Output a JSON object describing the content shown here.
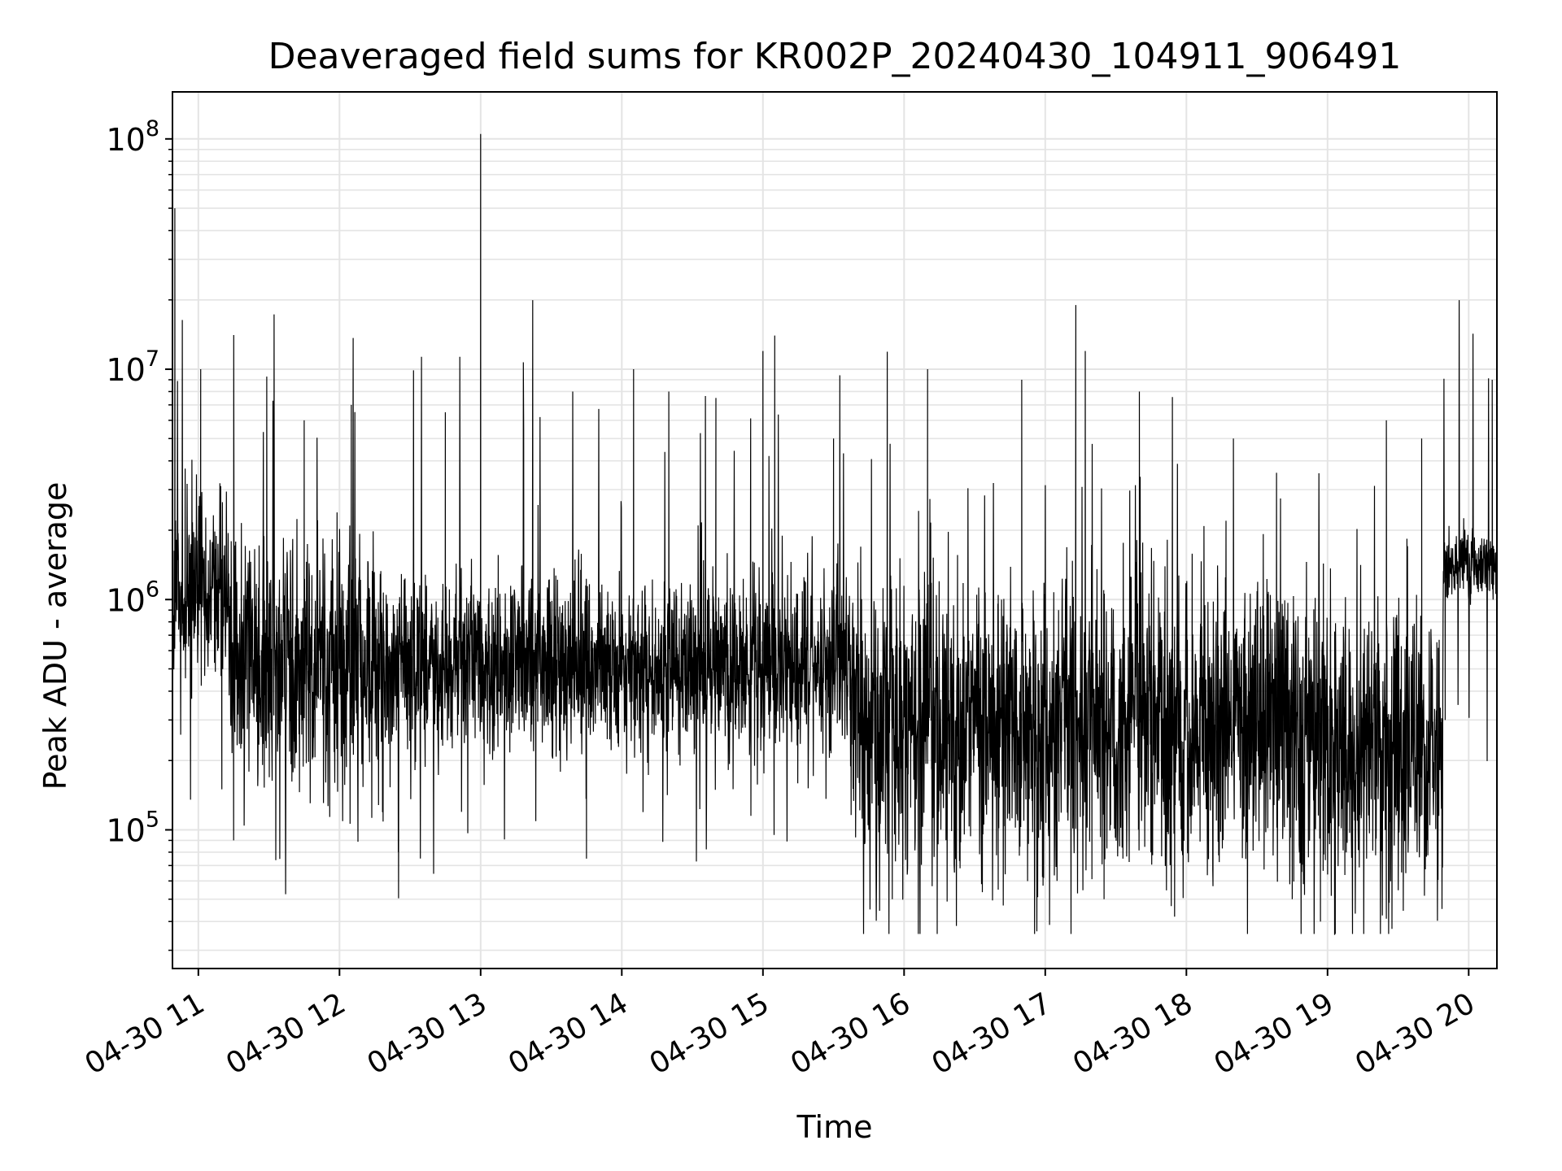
{
  "chart_data": {
    "type": "line",
    "title": "Deaveraged field sums for KR002P_20240430_104911_906491",
    "xlabel": "Time",
    "ylabel": "Peak ADU - average",
    "yscale": "log",
    "xlim": [
      "2024-04-30T10:49",
      "2024-04-30T20:12"
    ],
    "ylim": [
      25000,
      160000000
    ],
    "x_ticks": [
      {
        "t": "2024-04-30T11:00",
        "label": "04-30 11"
      },
      {
        "t": "2024-04-30T12:00",
        "label": "04-30 12"
      },
      {
        "t": "2024-04-30T13:00",
        "label": "04-30 13"
      },
      {
        "t": "2024-04-30T14:00",
        "label": "04-30 14"
      },
      {
        "t": "2024-04-30T15:00",
        "label": "04-30 15"
      },
      {
        "t": "2024-04-30T16:00",
        "label": "04-30 16"
      },
      {
        "t": "2024-04-30T17:00",
        "label": "04-30 17"
      },
      {
        "t": "2024-04-30T18:00",
        "label": "04-30 18"
      },
      {
        "t": "2024-04-30T19:00",
        "label": "04-30 19"
      },
      {
        "t": "2024-04-30T20:00",
        "label": "04-30 20"
      }
    ],
    "y_ticks": [
      {
        "value": 100000,
        "base": "10",
        "exp": "5"
      },
      {
        "value": 1000000,
        "base": "10",
        "exp": "6"
      },
      {
        "value": 10000000,
        "base": "10",
        "exp": "7"
      },
      {
        "value": 100000000,
        "base": "10",
        "exp": "8"
      }
    ],
    "grid": true,
    "line_color": "#000000",
    "series": [
      {
        "points": [
          [
            "2024-04-30T10:49",
            1200000
          ],
          [
            "2024-04-30T10:50",
            50000000
          ],
          [
            "2024-04-30T10:51",
            900000
          ],
          [
            "2024-04-30T11:00",
            700000
          ],
          [
            "2024-04-30T11:01",
            10000000
          ],
          [
            "2024-04-30T11:10",
            150000
          ],
          [
            "2024-04-30T11:15",
            90000
          ],
          [
            "2024-04-30T11:30",
            400000
          ],
          [
            "2024-04-30T11:45",
            6000000
          ],
          [
            "2024-04-30T12:00",
            500000
          ],
          [
            "2024-04-30T12:05",
            7000000
          ],
          [
            "2024-04-30T12:25",
            80000
          ],
          [
            "2024-04-30T12:40",
            65000
          ],
          [
            "2024-04-30T12:45",
            6500000
          ],
          [
            "2024-04-30T12:59",
            500000
          ],
          [
            "2024-04-30T13:00",
            105000000
          ],
          [
            "2024-04-30T13:01",
            600000
          ],
          [
            "2024-04-30T13:30",
            300000
          ],
          [
            "2024-04-30T13:45",
            75000
          ],
          [
            "2024-04-30T14:05",
            10000000
          ],
          [
            "2024-04-30T14:20",
            8000000
          ],
          [
            "2024-04-30T14:40",
            7500000
          ],
          [
            "2024-04-30T15:00",
            12000000
          ],
          [
            "2024-04-30T15:05",
            14000000
          ],
          [
            "2024-04-30T15:30",
            5000000
          ],
          [
            "2024-04-30T15:45",
            100000
          ],
          [
            "2024-04-30T15:55",
            50000
          ],
          [
            "2024-04-30T16:10",
            10000000
          ],
          [
            "2024-04-30T16:40",
            55000
          ],
          [
            "2024-04-30T16:50",
            9000000
          ],
          [
            "2024-04-30T17:05",
            60000
          ],
          [
            "2024-04-30T17:13",
            19000000
          ],
          [
            "2024-04-30T17:17",
            12000000
          ],
          [
            "2024-04-30T17:25",
            50000
          ],
          [
            "2024-04-30T17:40",
            8000000
          ],
          [
            "2024-04-30T17:55",
            42000
          ],
          [
            "2024-04-30T18:20",
            5000000
          ],
          [
            "2024-04-30T18:45",
            50000
          ],
          [
            "2024-04-30T18:57",
            40000
          ],
          [
            "2024-04-30T19:03",
            35000
          ],
          [
            "2024-04-30T19:25",
            6000000
          ],
          [
            "2024-04-30T19:40",
            5000000
          ],
          [
            "2024-04-30T19:50",
            300000
          ],
          [
            "2024-04-30T19:55",
            1500000
          ],
          [
            "2024-04-30T20:05",
            1400000
          ],
          [
            "2024-04-30T20:10",
            9000000
          ],
          [
            "2024-04-30T20:12",
            1200000
          ]
        ]
      }
    ]
  }
}
